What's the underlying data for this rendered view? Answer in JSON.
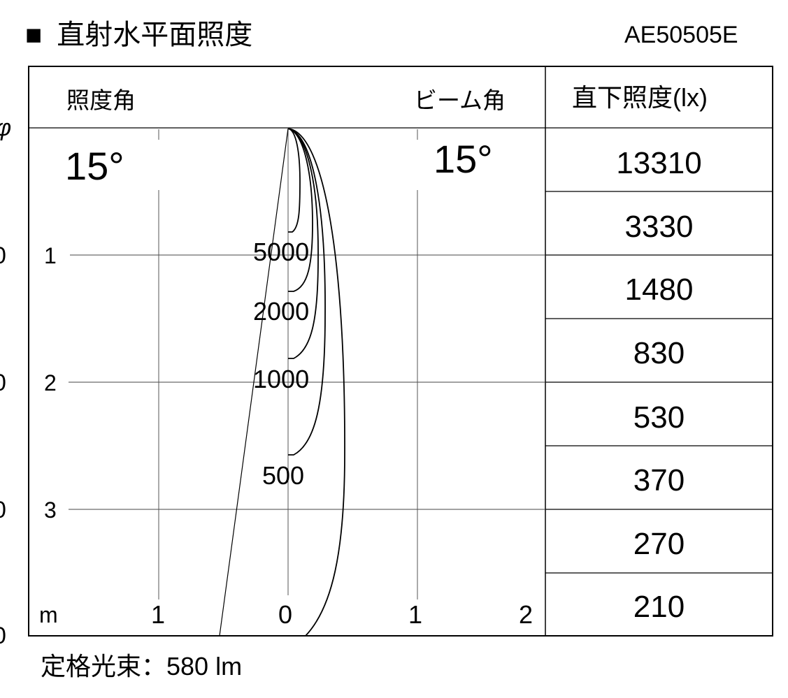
{
  "title": {
    "marker": "■",
    "text": "直射水平面照度"
  },
  "model": "AE50505E",
  "left_edge_cut": {
    "symbol": "φ",
    "values": [
      "0",
      "0",
      "0",
      "0"
    ]
  },
  "header": {
    "illuminance_angle_label": "照度角",
    "beam_angle_label": "ビーム角",
    "direct_illuminance_label": "直下照度(lx)"
  },
  "angles": {
    "illuminance_angle": "15°",
    "beam_angle": "15°"
  },
  "axis": {
    "unit": "m",
    "distance_labels": [
      "1",
      "2",
      "3"
    ],
    "horizontal_labels": [
      "1",
      "0",
      "1",
      "2"
    ]
  },
  "contours": [
    {
      "label": "5000"
    },
    {
      "label": "2000"
    },
    {
      "label": "1000"
    },
    {
      "label": "500"
    }
  ],
  "direct_illuminance": [
    "13310",
    "3330",
    "1480",
    "830",
    "530",
    "370",
    "270",
    "210"
  ],
  "footer": {
    "label": "定格光束：",
    "value": "580 lm"
  }
}
